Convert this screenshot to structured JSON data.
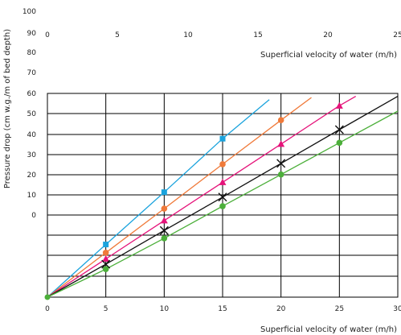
{
  "chart_data": {
    "type": "line",
    "ylabel": "Pressure drop (cm w.g./m of bed depth)",
    "xlabel_top": "Superficial velocity of water (m/h)",
    "xlabel_bottom": "Superficial velocity of water (m/h)",
    "x_ticks_top": [
      "0",
      "5",
      "10",
      "15",
      "20",
      "25"
    ],
    "x_ticks_bottom": [
      "0",
      "5",
      "10",
      "15",
      "20",
      "25",
      "30"
    ],
    "y_ticks_upper": [
      "100",
      "90",
      "80",
      "70",
      "60",
      "50",
      "40",
      "30",
      "20",
      "10",
      "0"
    ],
    "xlim": [
      0,
      30
    ],
    "grid": true,
    "series": [
      {
        "marker": "square",
        "color": "#1aa3dd",
        "x": [
          0,
          5,
          10,
          15,
          19
        ],
        "y": [
          0,
          12.8,
          25.5,
          38.5,
          48
        ],
        "points": [
          [
            5,
            12.8
          ],
          [
            10,
            25.5
          ],
          [
            15,
            38.5
          ]
        ]
      },
      {
        "marker": "circle",
        "color": "#f07a3a",
        "x": [
          0,
          5,
          10,
          15,
          20,
          22.6
        ],
        "y": [
          0,
          10.8,
          21.5,
          32.3,
          43,
          48.5
        ],
        "points": [
          [
            5,
            10.8
          ],
          [
            10,
            21.5
          ],
          [
            15,
            32.3
          ],
          [
            20,
            43
          ]
        ]
      },
      {
        "marker": "triangle",
        "color": "#e5137a",
        "x": [
          0,
          5,
          10,
          15,
          20,
          25,
          26.4
        ],
        "y": [
          0,
          9.3,
          18.6,
          27.9,
          37.2,
          46.5,
          48.8
        ],
        "points": [
          [
            5,
            9.3
          ],
          [
            10,
            18.6
          ],
          [
            15,
            27.9
          ],
          [
            20,
            37.2
          ],
          [
            25,
            46.5
          ]
        ]
      },
      {
        "marker": "cross",
        "color": "#111111",
        "x": [
          0,
          5,
          10,
          15,
          20,
          25,
          30
        ],
        "y": [
          0,
          8,
          16.2,
          24.3,
          32.5,
          40.7,
          48.8
        ],
        "points": [
          [
            5,
            8
          ],
          [
            10,
            16.2
          ],
          [
            15,
            24.3
          ],
          [
            20,
            32.5
          ],
          [
            25,
            40.7
          ]
        ]
      },
      {
        "marker": "circle",
        "color": "#4caf3a",
        "x": [
          0,
          5,
          10,
          15,
          20,
          25,
          30
        ],
        "y": [
          0,
          6.8,
          14.3,
          22.1,
          29.8,
          37.5,
          45.2
        ],
        "points": [
          [
            5,
            6.8
          ],
          [
            10,
            14.3
          ],
          [
            15,
            22.1
          ],
          [
            20,
            29.8
          ],
          [
            25,
            37.5
          ]
        ]
      }
    ]
  }
}
